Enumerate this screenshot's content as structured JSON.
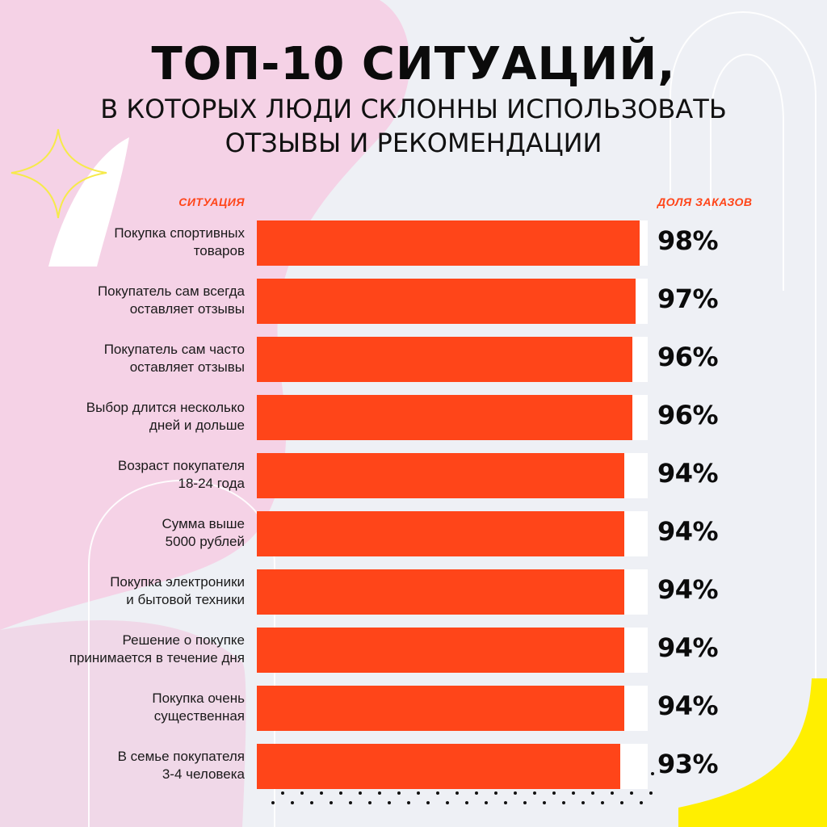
{
  "colors": {
    "background": "#eef0f5",
    "blob": "#f5d2e6",
    "bar": "#ff4519",
    "track": "#ffffff",
    "accent_text": "#ff4519",
    "yellow": "#ffef00"
  },
  "chart_data": {
    "type": "bar",
    "orientation": "horizontal",
    "title": "ТОП-10 СИТУАЦИЙ,",
    "subtitle": "В КОТОРЫХ ЛЮДИ СКЛОННЫ ИСПОЛЬЗОВАТЬ\nОТЗЫВЫ И РЕКОМЕНДАЦИИ",
    "category_header": "СИТУАЦИЯ",
    "value_header": "ДОЛЯ ЗАКАЗОВ",
    "unit": "%",
    "xlim": [
      0,
      100
    ],
    "categories": [
      "Покупка спортивных\nтоваров",
      "Покупатель сам всегда\nоставляет отзывы",
      "Покупатель сам часто\nоставляет отзывы",
      "Выбор длится несколько\nдней и дольше",
      "Возраст покупателя\n18-24 года",
      "Сумма выше\n5000 рублей",
      "Покупка электроники\nи бытовой техники",
      "Решение о покупке\nпринимается в течение дня",
      "Покупка очень\nсущественная",
      "В семье покупателя\n3-4 человека"
    ],
    "values": [
      98,
      97,
      96,
      96,
      94,
      94,
      94,
      94,
      94,
      93
    ],
    "value_labels": [
      "98%",
      "97%",
      "96%",
      "96%",
      "94%",
      "94%",
      "94%",
      "94%",
      "94%",
      "93%"
    ]
  }
}
